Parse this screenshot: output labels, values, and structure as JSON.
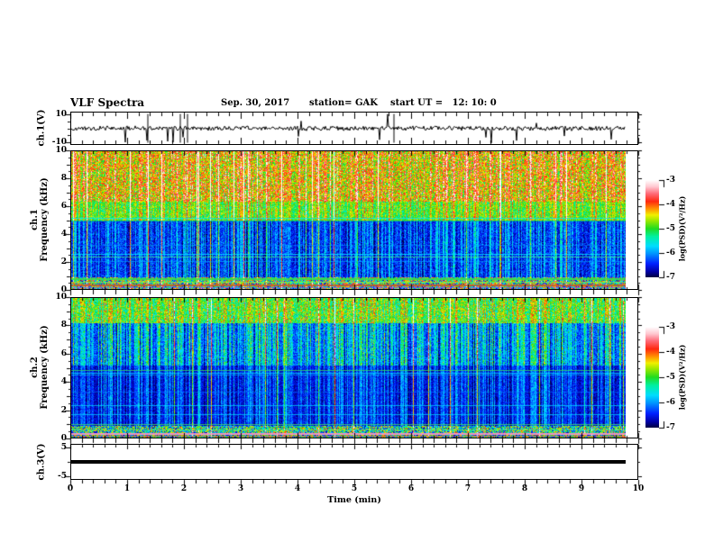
{
  "header": {
    "title": "VLF Spectra",
    "date": "Sep. 30, 2017",
    "station": "station= GAK",
    "start_ut": "start UT =   12: 10: 0"
  },
  "chart_data": {
    "type": "heatmap",
    "title": "VLF Spectra",
    "x": {
      "label": "Time (min)",
      "min": 0,
      "max": 10,
      "majors": [
        0,
        1,
        2,
        3,
        4,
        5,
        6,
        7,
        8,
        9,
        10
      ],
      "minor_step": 0.2,
      "data_end_min": 9.76
    },
    "colorbar": {
      "label": "log(PSD)(V²/Hz)",
      "min": -7,
      "max": -3,
      "ticks": [
        "-3",
        "-4",
        "-5",
        "-6",
        "-7"
      ]
    },
    "colormap": [
      [
        0.0,
        "#000041"
      ],
      [
        0.06,
        "#0000a8"
      ],
      [
        0.14,
        "#0020ff"
      ],
      [
        0.24,
        "#0090ff"
      ],
      [
        0.32,
        "#00dcff"
      ],
      [
        0.42,
        "#00f0a0"
      ],
      [
        0.5,
        "#20dc20"
      ],
      [
        0.58,
        "#98e800"
      ],
      [
        0.64,
        "#f0f000"
      ],
      [
        0.7,
        "#ff9800"
      ],
      [
        0.78,
        "#ff2810"
      ],
      [
        0.86,
        "#ff6a78"
      ],
      [
        0.93,
        "#ffc6cf"
      ],
      [
        1.0,
        "#ffffff"
      ]
    ],
    "panels": [
      {
        "id": "ch1-waveform",
        "type": "line",
        "ylabel": "ch.1(V)",
        "yrange": [
          -12,
          12
        ],
        "yticks": [
          10,
          -10
        ],
        "yminors": [
          5,
          0,
          -5
        ],
        "wave": {
          "seed": 20239,
          "noise_units": 1.5,
          "spike_prob": 0.025,
          "bipolar_prob": 0.007,
          "down_bias": 0.7,
          "spike_units": [
            5,
            11
          ]
        }
      },
      {
        "id": "ch1-spectrogram",
        "type": "heatmap",
        "ylabel1": "ch.1",
        "ylabel2": "Frequency (kHz)",
        "fmax": 10,
        "yticks": [
          10,
          8,
          6,
          4,
          2,
          0
        ],
        "yminor_step": 0.5,
        "seed": 93031,
        "streak_prob": 0.45,
        "impulse_prob": 0.05,
        "bands": [
          {
            "f": [
              6.4,
              10.01
            ],
            "base": 0.6,
            "jitter": 0.18,
            "streak": 0.35
          },
          {
            "f": [
              5.0,
              6.4
            ],
            "base": 0.48,
            "jitter": 0.12,
            "streak": 0.3
          },
          {
            "f": [
              0.9,
              5.0
            ],
            "base": 0.13,
            "jitter": 0.09,
            "streak": 0.3,
            "dark": true
          },
          {
            "f": [
              -0.01,
              0.9
            ],
            "base": 0.45,
            "jitter": 0.4,
            "streak": 0.1
          }
        ],
        "hlines": [
          {
            "f": 5.15,
            "c": "#00e8ff",
            "a": 0.8
          },
          {
            "f": 4.95,
            "c": "#00d070",
            "a": 0.7
          },
          {
            "f": 3.2,
            "c": "#0090ff",
            "a": 0.5
          },
          {
            "f": 2.55,
            "c": "#00e8ff",
            "a": 0.8
          },
          {
            "f": 2.35,
            "c": "#40ff90",
            "a": 0.7
          },
          {
            "f": 2.0,
            "c": "#00a8ff",
            "a": 0.6
          },
          {
            "f": 0.78,
            "c": "#30e050",
            "a": 0.9,
            "t": 2
          },
          {
            "f": 0.55,
            "c": "#80ff40",
            "a": 0.8
          },
          {
            "f": 0.3,
            "c": "#d05020",
            "a": 0.8,
            "t": 2
          },
          {
            "f": 0.15,
            "c": "#8060ff",
            "a": 0.7
          }
        ]
      },
      {
        "id": "ch2-spectrogram",
        "type": "heatmap",
        "ylabel1": "ch.2",
        "ylabel2": "Frequency (kHz)",
        "fmax": 10,
        "yticks": [
          10,
          8,
          6,
          4,
          2,
          0
        ],
        "yminor_step": 0.5,
        "seed": 41077,
        "streak_prob": 0.5,
        "impulse_prob": 0.04,
        "bands": [
          {
            "f": [
              8.2,
              10.01
            ],
            "base": 0.45,
            "jitter": 0.15,
            "streak": 0.3
          },
          {
            "f": [
              5.2,
              8.2
            ],
            "base": 0.18,
            "jitter": 0.1,
            "streak": 0.45,
            "dark": true
          },
          {
            "f": [
              0.9,
              5.2
            ],
            "base": 0.08,
            "jitter": 0.06,
            "streak": 0.28,
            "dark": true
          },
          {
            "f": [
              -0.01,
              0.9
            ],
            "base": 0.38,
            "jitter": 0.34,
            "streak": 0.1
          }
        ],
        "hlines": [
          {
            "f": 4.85,
            "c": "#30e060",
            "a": 0.8
          },
          {
            "f": 4.65,
            "c": "#00e8ff",
            "a": 0.8
          },
          {
            "f": 4.5,
            "c": "#00c8ff",
            "a": 0.6
          },
          {
            "f": 3.3,
            "c": "#0080ff",
            "a": 0.5
          },
          {
            "f": 2.3,
            "c": "#00e0ff",
            "a": 0.7
          },
          {
            "f": 1.7,
            "c": "#00d8ff",
            "a": 0.7
          },
          {
            "f": 0.95,
            "c": "#40e060",
            "a": 0.8
          },
          {
            "f": 0.6,
            "c": "#60ff60",
            "a": 0.6
          },
          {
            "f": 0.3,
            "c": "#ff90c8",
            "a": 0.9,
            "t": 2
          },
          {
            "f": 0.12,
            "c": "#d04040",
            "a": 0.7
          }
        ]
      },
      {
        "id": "ch3-waveform",
        "type": "flat",
        "ylabel": "ch.3(V)",
        "yrange": [
          -6.25,
          6.25
        ],
        "yticks": [
          5,
          -5
        ],
        "yminors": [
          0
        ],
        "value": 0,
        "thickness": 4
      }
    ]
  }
}
